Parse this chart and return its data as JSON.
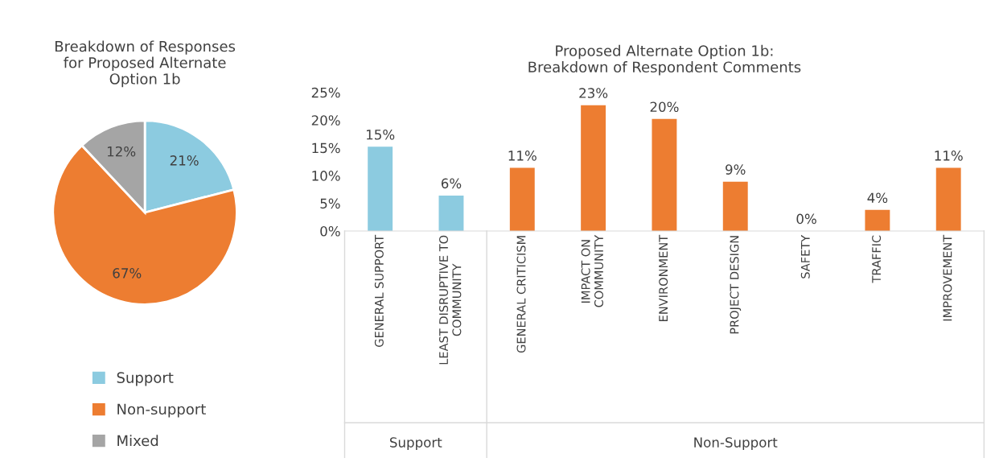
{
  "chart_data": [
    {
      "type": "pie",
      "title": "Breakdown of Responses\nfor Proposed Alternate\nOption 1b",
      "categories": [
        "Support",
        "Non-support",
        "Mixed"
      ],
      "values": [
        21,
        67,
        12
      ],
      "colors": [
        "#8ccbe0",
        "#ed7d31",
        "#a5a5a5"
      ],
      "value_labels": [
        "21%",
        "67%",
        "12%"
      ],
      "legend": "bottom"
    },
    {
      "type": "bar",
      "title": "Proposed Alternate Option 1b:\nBreakdown of Respondent Comments",
      "categories": [
        "GENERAL SUPPORT",
        "LEAST DISRUPTIVE TO\nCOMMUNITY",
        "GENERAL CRITICISM",
        "IMPACT ON\nCOMMUNITY",
        "ENVIRONMENT",
        "PROJECT DESIGN",
        "SAFETY",
        "TRAFFIC",
        "IMPROVEMENT"
      ],
      "values": [
        15.2,
        6.4,
        11.4,
        22.7,
        20.2,
        8.9,
        0,
        3.8,
        11.4
      ],
      "value_labels": [
        "15%",
        "6%",
        "11%",
        "23%",
        "20%",
        "9%",
        "0%",
        "4%",
        "11%"
      ],
      "colors": [
        "#8ccbe0",
        "#8ccbe0",
        "#ed7d31",
        "#ed7d31",
        "#ed7d31",
        "#ed7d31",
        "#ed7d31",
        "#ed7d31",
        "#ed7d31"
      ],
      "ylim": [
        0,
        25
      ],
      "yticks": [
        {
          "value": 0,
          "label": "0%"
        },
        {
          "value": 5,
          "label": "5%"
        },
        {
          "value": 10,
          "label": "10%"
        },
        {
          "value": 15,
          "label": "15%"
        },
        {
          "value": 20,
          "label": "20%"
        },
        {
          "value": 25,
          "label": "25%"
        }
      ],
      "annotations": [
        "Support",
        "Non-Support"
      ]
    }
  ]
}
